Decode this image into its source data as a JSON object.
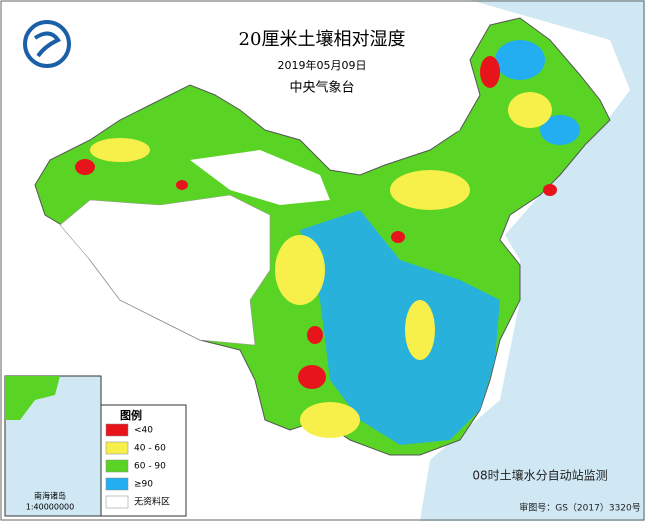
{
  "header": {
    "title": "20厘米土壤相对湿度",
    "date": "2019年05月09日",
    "agency": "中央气象台"
  },
  "legend": {
    "title": "图例",
    "items": [
      {
        "label": "<40",
        "color": "#e8141b"
      },
      {
        "label": "40 - 60",
        "color": "#f7f04a"
      },
      {
        "label": "60 - 90",
        "color": "#5ad424"
      },
      {
        "label": "≥90",
        "color": "#22aef0"
      },
      {
        "label": "无资料区",
        "color": "#ffffff"
      }
    ]
  },
  "inset": {
    "title": "南海诸岛",
    "scale": "1:40000000"
  },
  "footer": {
    "note": "08时土壤水分自动站监测",
    "approval": "审图号：GS（2017）3320号"
  }
}
